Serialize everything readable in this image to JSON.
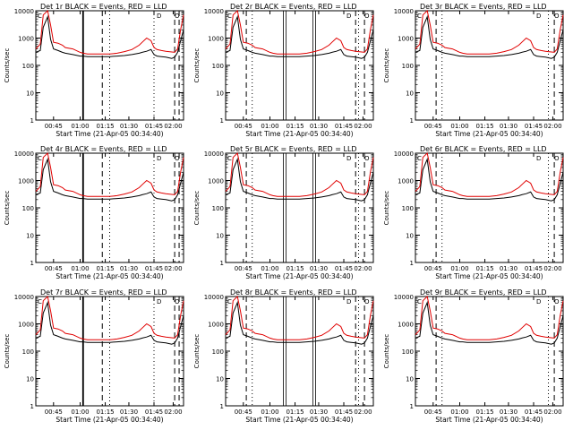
{
  "chart_data": [
    {
      "panel": "1r",
      "title": "Det 1r BLACK = Events, RED = LLD",
      "xlabel": "Start Time (21-Apr-05 00:34:40)",
      "ylabel": "Counts/sec",
      "markers": {
        "dashed": [
          0.45,
          0.94,
          0.97
        ],
        "dotted": [
          0.5,
          0.8
        ],
        "solid": [
          0.32
        ],
        "double": []
      }
    },
    {
      "panel": "2r",
      "title": "Det 2r BLACK = Events, RED = LLD",
      "xlabel": "Start Time (21-Apr-05 00:34:40)",
      "ylabel": "Counts/sec",
      "markers": {
        "dashed": [
          0.14,
          0.88,
          0.94
        ],
        "dotted": [
          0.18,
          0.9
        ],
        "solid": [],
        "double": [
          0.4,
          0.6
        ]
      }
    },
    {
      "panel": "3r",
      "title": "Det 3r BLACK = Events, RED = LLD",
      "xlabel": "Start Time (21-Apr-05 00:34:40)",
      "ylabel": "Counts/sec",
      "markers": {
        "dashed": [
          0.14,
          0.94
        ],
        "dotted": [
          0.18,
          0.9
        ],
        "solid": [],
        "double": []
      }
    },
    {
      "panel": "4r",
      "title": "Det 4r BLACK = Events, RED = LLD",
      "xlabel": "Start Time (21-Apr-05 00:34:40)",
      "ylabel": "Counts/sec",
      "markers": {
        "dashed": [
          0.45,
          0.94,
          0.97
        ],
        "dotted": [
          0.5,
          0.8
        ],
        "solid": [
          0.32
        ],
        "double": []
      }
    },
    {
      "panel": "5r",
      "title": "Det 5r BLACK = Events, RED = LLD",
      "xlabel": "Start Time (21-Apr-05 00:34:40)",
      "ylabel": "Counts/sec",
      "markers": {
        "dashed": [
          0.14,
          0.88,
          0.94
        ],
        "dotted": [
          0.18,
          0.9
        ],
        "solid": [],
        "double": [
          0.4,
          0.6
        ]
      }
    },
    {
      "panel": "6r",
      "title": "Det 6r BLACK = Events, RED = LLD",
      "xlabel": "Start Time (21-Apr-05 00:34:40)",
      "ylabel": "Counts/sec",
      "markers": {
        "dashed": [
          0.14,
          0.94
        ],
        "dotted": [
          0.18,
          0.9
        ],
        "solid": [],
        "double": []
      }
    },
    {
      "panel": "7r",
      "title": "Det 7r BLACK = Events, RED = LLD",
      "xlabel": "Start Time (21-Apr-05 00:34:40)",
      "ylabel": "Counts/sec",
      "markers": {
        "dashed": [
          0.45,
          0.94,
          0.97
        ],
        "dotted": [
          0.5,
          0.8
        ],
        "solid": [
          0.32
        ],
        "double": []
      }
    },
    {
      "panel": "8r",
      "title": "Det 8r BLACK = Events, RED = LLD",
      "xlabel": "Start Time (21-Apr-05 00:34:40)",
      "ylabel": "Counts/sec",
      "markers": {
        "dashed": [
          0.14,
          0.88,
          0.94
        ],
        "dotted": [
          0.18,
          0.9
        ],
        "solid": [],
        "double": [
          0.4,
          0.6
        ]
      }
    },
    {
      "panel": "9r",
      "title": "Det 9r BLACK = Events, RED = LLD",
      "xlabel": "Start Time (21-Apr-05 00:34:40)",
      "ylabel": "Counts/sec",
      "markers": {
        "dashed": [
          0.14,
          0.94
        ],
        "dotted": [
          0.18,
          0.9
        ],
        "solid": [],
        "double": []
      }
    }
  ],
  "shared": {
    "type": "line",
    "yscale": "log",
    "ylim": [
      1,
      10000
    ],
    "yticks": [
      1,
      10,
      100,
      1000,
      10000
    ],
    "ytick_labels": [
      "1",
      "10",
      "100",
      "1000",
      "10000"
    ],
    "xtick_labels_a": [
      "00:45",
      "01:00",
      "01:15",
      "01:30",
      "01:45",
      "02:00"
    ],
    "xtick_labels_b": [
      "00:45",
      "01:00",
      "01:15",
      "01:30",
      "01:45",
      "02:00"
    ],
    "legend_glyphs": [
      "C",
      "D",
      "O"
    ],
    "series": [
      {
        "name": "BLACK = Events",
        "color": "#000000",
        "x": [
          0,
          0.03,
          0.05,
          0.08,
          0.1,
          0.12,
          0.15,
          0.18,
          0.2,
          0.25,
          0.3,
          0.32,
          0.35,
          0.4,
          0.45,
          0.5,
          0.55,
          0.6,
          0.65,
          0.7,
          0.72,
          0.75,
          0.78,
          0.8,
          0.82,
          0.85,
          0.88,
          0.9,
          0.92,
          0.94,
          0.96,
          0.98,
          1.0
        ],
        "y": [
          300,
          350,
          2500,
          6000,
          900,
          400,
          350,
          300,
          280,
          250,
          220,
          220,
          210,
          210,
          210,
          210,
          220,
          230,
          250,
          280,
          300,
          330,
          380,
          250,
          220,
          210,
          200,
          190,
          180,
          200,
          300,
          800,
          2000
        ]
      },
      {
        "name": "RED = LLD",
        "color": "#e00000",
        "x": [
          0,
          0.03,
          0.05,
          0.08,
          0.1,
          0.12,
          0.15,
          0.18,
          0.2,
          0.25,
          0.3,
          0.32,
          0.35,
          0.4,
          0.45,
          0.5,
          0.55,
          0.6,
          0.65,
          0.7,
          0.72,
          0.75,
          0.78,
          0.8,
          0.82,
          0.85,
          0.88,
          0.9,
          0.92,
          0.94,
          0.96,
          0.98,
          1.0
        ],
        "y": [
          400,
          600,
          7000,
          10000,
          3000,
          700,
          650,
          550,
          450,
          400,
          300,
          280,
          260,
          260,
          260,
          260,
          280,
          320,
          380,
          550,
          700,
          1000,
          800,
          450,
          380,
          350,
          330,
          320,
          310,
          300,
          400,
          2000,
          7000
        ]
      }
    ]
  }
}
